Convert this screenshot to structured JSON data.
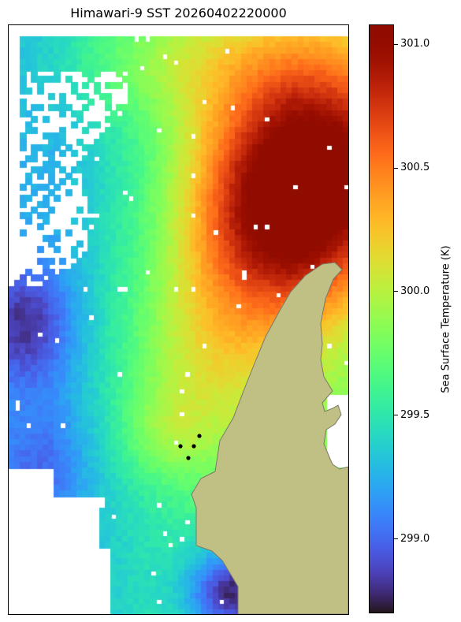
{
  "title": "Himawari-9 SST 20260402220000",
  "colorbar": {
    "label": "Sea Surface Temperature (K)",
    "min": 298.7,
    "max": 301.08,
    "ticks": [
      {
        "value": 299.0,
        "label": "299.0"
      },
      {
        "value": 299.5,
        "label": "299.5"
      },
      {
        "value": 300.0,
        "label": "300.0"
      },
      {
        "value": 300.5,
        "label": "300.5"
      },
      {
        "value": 301.0,
        "label": "301.0"
      }
    ],
    "colormap": "turbo"
  },
  "colors": {
    "land": "#c0c084",
    "coastline": "#7a7a6a",
    "missing": "#ffffff",
    "markers": "#000000"
  },
  "markers_count": 4
}
